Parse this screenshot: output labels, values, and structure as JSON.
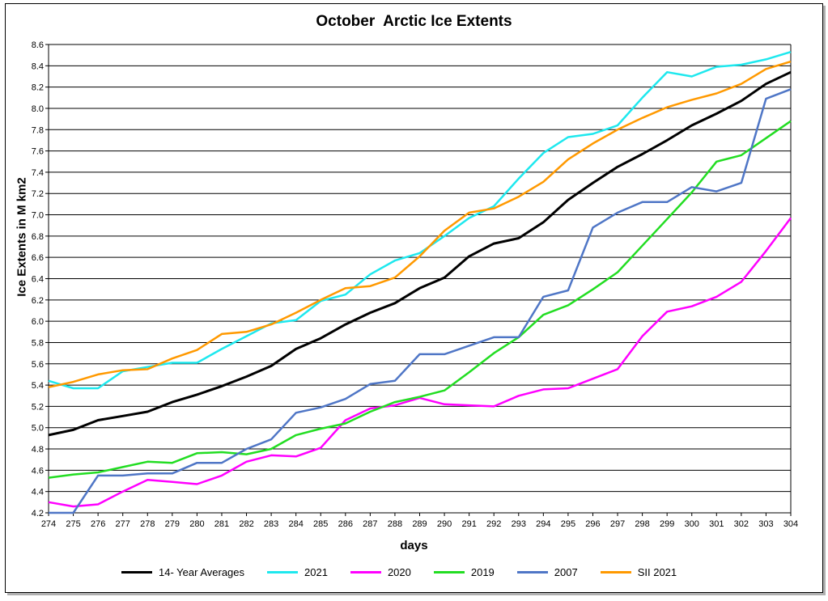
{
  "chart_data": {
    "type": "line",
    "title": "October  Arctic Ice Extents",
    "xlabel": "days",
    "ylabel": "Ice Extents in M km2",
    "x": [
      274,
      275,
      276,
      277,
      278,
      279,
      280,
      281,
      282,
      283,
      284,
      285,
      286,
      287,
      288,
      289,
      290,
      291,
      292,
      293,
      294,
      295,
      296,
      297,
      298,
      299,
      300,
      301,
      302,
      303,
      304
    ],
    "xlim": [
      274,
      304
    ],
    "ylim": [
      4.2,
      8.6
    ],
    "ytick_step": 0.2,
    "grid": true,
    "legend_position": "bottom",
    "series": [
      {
        "name": "14- Year Averages",
        "color": "#000000",
        "values": [
          4.93,
          4.98,
          5.07,
          5.11,
          5.15,
          5.24,
          5.31,
          5.39,
          5.48,
          5.58,
          5.74,
          5.84,
          5.97,
          6.08,
          6.17,
          6.31,
          6.41,
          6.61,
          6.73,
          6.78,
          6.93,
          7.14,
          7.3,
          7.45,
          7.57,
          7.7,
          7.84,
          7.95,
          8.07,
          8.23,
          8.34
        ]
      },
      {
        "name": "2021",
        "color": "#1ee8ee",
        "values": [
          5.44,
          5.37,
          5.37,
          5.53,
          5.57,
          5.61,
          5.61,
          5.74,
          5.86,
          5.98,
          6.01,
          6.19,
          6.25,
          6.44,
          6.57,
          6.64,
          6.8,
          6.97,
          7.08,
          7.34,
          7.58,
          7.73,
          7.76,
          7.84,
          8.1,
          8.34,
          8.3,
          8.39,
          8.41,
          8.46,
          8.53
        ]
      },
      {
        "name": "2020",
        "color": "#ff00ff",
        "values": [
          4.3,
          4.26,
          4.28,
          4.4,
          4.51,
          4.49,
          4.47,
          4.55,
          4.68,
          4.74,
          4.73,
          4.81,
          5.07,
          5.18,
          5.21,
          5.28,
          5.22,
          5.21,
          5.2,
          5.3,
          5.36,
          5.37,
          5.46,
          5.55,
          5.86,
          6.09,
          6.14,
          6.23,
          6.37,
          6.66,
          6.97
        ]
      },
      {
        "name": "2019",
        "color": "#22dd22",
        "values": [
          4.53,
          4.56,
          4.58,
          4.63,
          4.68,
          4.67,
          4.76,
          4.77,
          4.75,
          4.8,
          4.93,
          4.99,
          5.04,
          5.15,
          5.24,
          5.29,
          5.35,
          5.52,
          5.7,
          5.85,
          6.06,
          6.15,
          6.3,
          6.46,
          6.71,
          6.96,
          7.21,
          7.5,
          7.56,
          7.72,
          7.88
        ]
      },
      {
        "name": "2007",
        "color": "#4f76c6",
        "values": [
          4.2,
          4.2,
          4.55,
          4.55,
          4.57,
          4.57,
          4.67,
          4.67,
          4.8,
          4.89,
          5.14,
          5.19,
          5.27,
          5.41,
          5.44,
          5.69,
          5.69,
          5.77,
          5.85,
          5.85,
          6.23,
          6.29,
          6.88,
          7.02,
          7.12,
          7.12,
          7.26,
          7.22,
          7.3,
          8.09,
          8.18
        ]
      },
      {
        "name": "SII 2021",
        "color": "#ff9900",
        "values": [
          5.38,
          5.43,
          5.5,
          5.54,
          5.55,
          5.65,
          5.73,
          5.88,
          5.9,
          5.97,
          6.08,
          6.2,
          6.31,
          6.33,
          6.41,
          6.61,
          6.85,
          7.02,
          7.06,
          7.17,
          7.31,
          7.52,
          7.67,
          7.8,
          7.91,
          8.01,
          8.08,
          8.14,
          8.23,
          8.37,
          8.44
        ]
      }
    ]
  }
}
